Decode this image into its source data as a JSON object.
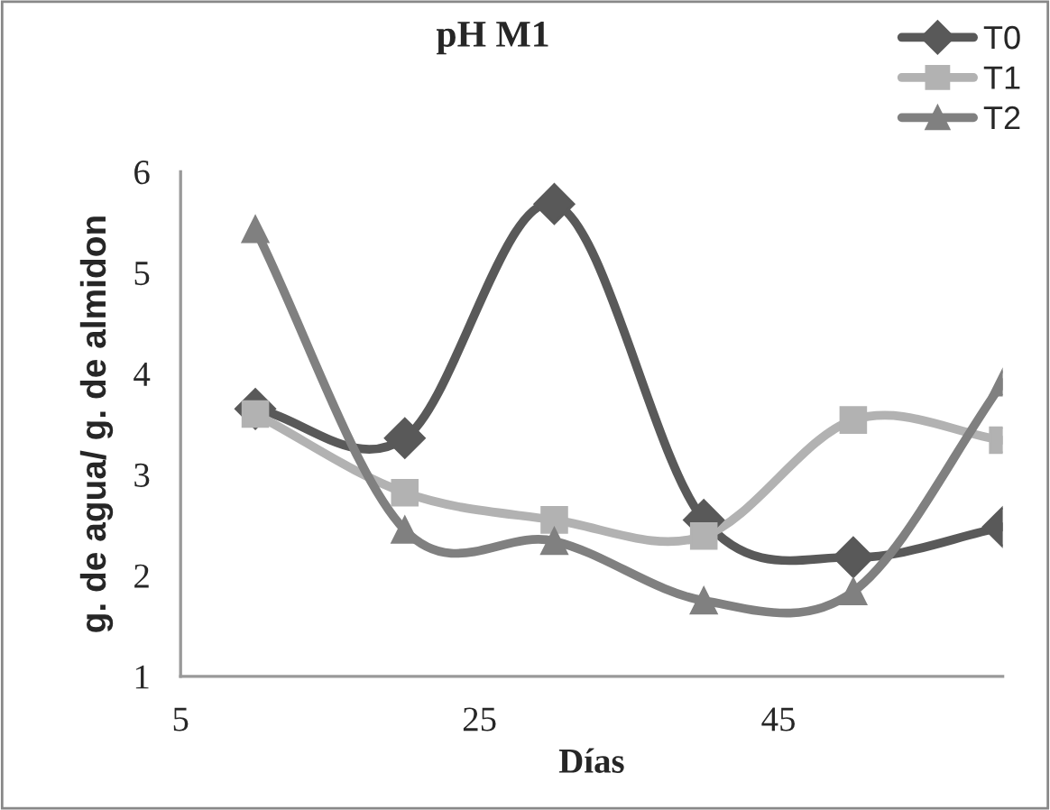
{
  "chart_data": {
    "type": "line",
    "title": "pH M1",
    "xlabel": "Días",
    "ylabel": "g. de agua/ g. de almidon",
    "x": [
      10,
      20,
      30,
      40,
      50,
      60
    ],
    "series": [
      {
        "name": "T0",
        "color": "#595959",
        "marker": "diamond",
        "values": [
          3.65,
          3.36,
          5.68,
          2.55,
          2.18,
          2.48
        ]
      },
      {
        "name": "T1",
        "color": "#b2b2b2",
        "marker": "square",
        "values": [
          3.6,
          2.82,
          2.55,
          2.39,
          3.54,
          3.34
        ]
      },
      {
        "name": "T2",
        "color": "#808080",
        "marker": "triangle",
        "values": [
          5.43,
          2.45,
          2.34,
          1.75,
          1.84,
          3.91
        ]
      }
    ],
    "xlim": [
      5,
      60
    ],
    "xticks": [
      5,
      25,
      45
    ],
    "ylim": [
      1,
      6
    ],
    "yticks": [
      1,
      2,
      3,
      4,
      5,
      6
    ],
    "grid": false,
    "legend": "top right",
    "line_style": "solid"
  }
}
